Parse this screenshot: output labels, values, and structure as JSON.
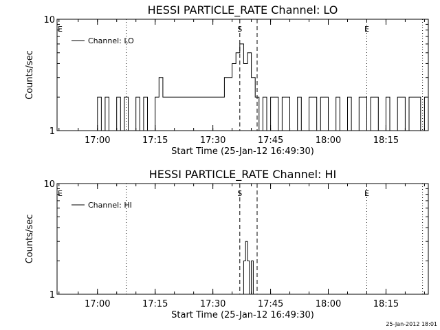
{
  "footer": {
    "timestamp": "25-Jan-2012 18:01"
  },
  "chart_data": [
    {
      "type": "line",
      "title": "HESSI PARTICLE_RATE Channel: LO",
      "xlabel": "Start Time (25-Jan-12 16:49:30)",
      "ylabel": "Counts/sec",
      "yscale": "log",
      "ylim": [
        1,
        10
      ],
      "ytick_labels": [
        "1",
        "10"
      ],
      "xlim": [
        "16:49:30",
        "18:26:00"
      ],
      "xtick_labels": [
        "17:00",
        "17:15",
        "17:30",
        "17:45",
        "18:00",
        "18:15"
      ],
      "legend": {
        "label": "Channel: LO",
        "position": "top-left"
      },
      "grid": false,
      "markers": [
        {
          "label": "E",
          "time": "16:49:30",
          "style": "none"
        },
        {
          "label": "",
          "time": "17:07:30",
          "style": "dotted"
        },
        {
          "label": "S",
          "time": "17:37:00",
          "style": "dashed"
        },
        {
          "label": "",
          "time": "17:41:30",
          "style": "dashed"
        },
        {
          "label": "E",
          "time": "18:10:00",
          "style": "dotted"
        },
        {
          "label": "",
          "time": "18:24:30",
          "style": "dotted"
        }
      ],
      "series": [
        {
          "style": "step",
          "x": [
            "17:00:00",
            "17:01:00",
            "17:02:00",
            "17:03:00",
            "17:05:00",
            "17:06:00",
            "17:07:00",
            "17:08:00",
            "17:10:00",
            "17:11:00",
            "17:12:00",
            "17:13:00",
            "17:15:00",
            "17:16:00",
            "17:17:00",
            "17:20:00",
            "17:25:00",
            "17:30:00",
            "17:33:00",
            "17:35:00",
            "17:36:00",
            "17:37:00",
            "17:38:00",
            "17:39:00",
            "17:40:00",
            "17:41:00",
            "17:42:00",
            "17:43:00",
            "17:44:00",
            "17:45:00",
            "17:47:00",
            "17:48:00",
            "17:50:00",
            "17:52:00",
            "17:53:00",
            "17:55:00",
            "17:57:00",
            "17:58:00",
            "18:00:00",
            "18:02:00",
            "18:03:00",
            "18:05:00",
            "18:06:00",
            "18:08:00",
            "18:10:00",
            "18:11:00",
            "18:13:00",
            "18:15:00",
            "18:16:00",
            "18:18:00",
            "18:20:00",
            "18:21:00",
            "18:24:00",
            "18:25:00"
          ],
          "y": [
            2,
            1,
            2,
            1,
            2,
            1,
            2,
            1,
            2,
            1,
            2,
            1,
            2,
            3,
            2,
            2,
            2,
            2,
            3,
            4,
            5,
            6,
            4,
            5,
            3,
            2,
            1,
            2,
            1,
            2,
            1,
            2,
            1,
            2,
            1,
            2,
            1,
            2,
            1,
            2,
            1,
            2,
            1,
            2,
            1,
            2,
            1,
            2,
            1,
            2,
            1,
            2,
            1,
            2
          ]
        }
      ]
    },
    {
      "type": "line",
      "title": "HESSI PARTICLE_RATE Channel: HI",
      "xlabel": "Start Time (25-Jan-12 16:49:30)",
      "ylabel": "Counts/sec",
      "yscale": "log",
      "ylim": [
        1,
        10
      ],
      "ytick_labels": [
        "1",
        "10"
      ],
      "xlim": [
        "16:49:30",
        "18:26:00"
      ],
      "xtick_labels": [
        "17:00",
        "17:15",
        "17:30",
        "17:45",
        "18:00",
        "18:15"
      ],
      "legend": {
        "label": "Channel: HI",
        "position": "top-left"
      },
      "grid": false,
      "markers": [
        {
          "label": "E",
          "time": "16:49:30",
          "style": "none"
        },
        {
          "label": "",
          "time": "17:07:30",
          "style": "dotted"
        },
        {
          "label": "S",
          "time": "17:37:00",
          "style": "dashed"
        },
        {
          "label": "",
          "time": "17:41:30",
          "style": "dashed"
        },
        {
          "label": "E",
          "time": "18:10:00",
          "style": "dotted"
        },
        {
          "label": "",
          "time": "18:24:30",
          "style": "dotted"
        }
      ],
      "series": [
        {
          "style": "step",
          "x": [
            "17:38:00",
            "17:38:30",
            "17:39:00",
            "17:39:30",
            "17:40:00",
            "17:40:30"
          ],
          "y": [
            2,
            3,
            2,
            1,
            2,
            1
          ]
        }
      ]
    }
  ]
}
